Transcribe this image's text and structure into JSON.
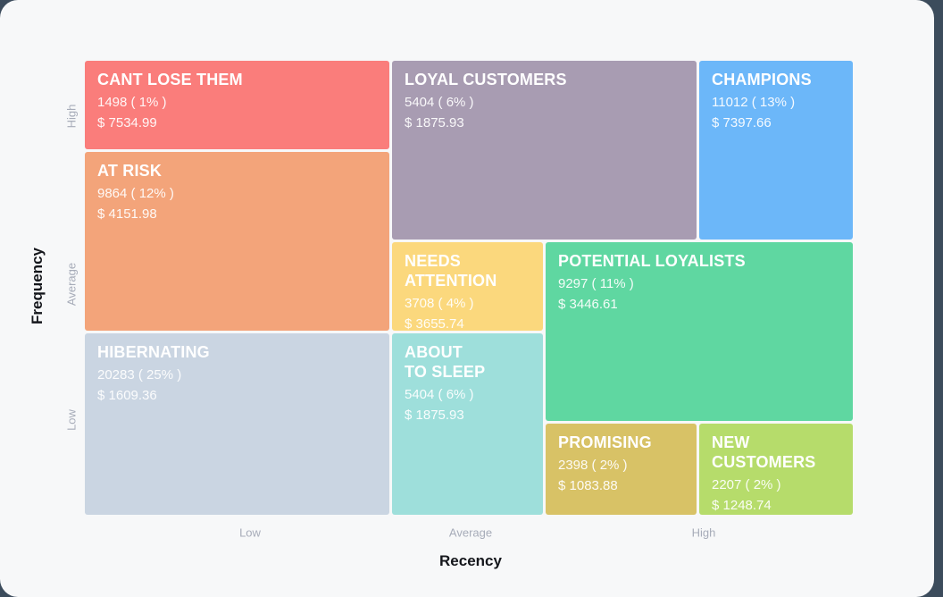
{
  "page": {
    "background_color": "#3C4C5C",
    "card_color": "#F7F8F9"
  },
  "chart_data": {
    "type": "treemap",
    "title": "",
    "xlabel": "Recency",
    "ylabel": "Frequency",
    "x_ticks": [
      "Low",
      "Average",
      "High"
    ],
    "y_ticks": [
      "High",
      "Average",
      "Low"
    ],
    "grid": false,
    "legend_position": "none",
    "segments": [
      {
        "name": "CANT LOSE THEM",
        "label": "CANT LOSE THEM",
        "count": 1498,
        "percent": 1,
        "monetary": 7534.99,
        "count_label": "1498 ( 1% )",
        "monetary_label": "$ 7534.99",
        "color": "#FA7D7B",
        "recency": "Low",
        "frequency": "High"
      },
      {
        "name": "AT RISK",
        "label": "AT RISK",
        "count": 9864,
        "percent": 12,
        "monetary": 4151.98,
        "count_label": "9864 ( 12% )",
        "monetary_label": "$ 4151.98",
        "color": "#F3A47A",
        "recency": "Low",
        "frequency": "Average"
      },
      {
        "name": "HIBERNATING",
        "label": "HIBERNATING",
        "count": 20283,
        "percent": 25,
        "monetary": 1609.36,
        "count_label": "20283 ( 25% )",
        "monetary_label": "$ 1609.36",
        "color": "#CAD5E2",
        "recency": "Low",
        "frequency": "Low"
      },
      {
        "name": "LOYAL CUSTOMERS",
        "label": "LOYAL CUSTOMERS",
        "count": 5404,
        "percent": 6,
        "monetary": 1875.93,
        "count_label": "5404 ( 6% )",
        "monetary_label": "$ 1875.93",
        "color": "#A89CB2",
        "recency": "Average",
        "frequency": "High"
      },
      {
        "name": "CHAMPIONS",
        "label": "CHAMPIONS",
        "count": 11012,
        "percent": 13,
        "monetary": 7397.66,
        "count_label": "11012 ( 13% )",
        "monetary_label": "$ 7397.66",
        "color": "#6CB7F9",
        "recency": "High",
        "frequency": "High"
      },
      {
        "name": "NEEDS ATTENTION",
        "label": "NEEDS\nATTENTION",
        "count": 3708,
        "percent": 4,
        "monetary": 3655.74,
        "count_label": "3708 ( 4% )",
        "monetary_label": "$ 3655.74",
        "color": "#FBD87D",
        "recency": "Average",
        "frequency": "Average"
      },
      {
        "name": "POTENTIAL LOYALISTS",
        "label": "POTENTIAL LOYALISTS",
        "count": 9297,
        "percent": 11,
        "monetary": 3446.61,
        "count_label": "9297 ( 11% )",
        "monetary_label": "$ 3446.61",
        "color": "#5FD7A1",
        "recency": "High",
        "frequency": "Average"
      },
      {
        "name": "ABOUT TO SLEEP",
        "label": "ABOUT\nTO SLEEP",
        "count": 5404,
        "percent": 6,
        "monetary": 1875.93,
        "count_label": "5404 ( 6% )",
        "monetary_label": "$ 1875.93",
        "color": "#9EDFDB",
        "recency": "Average",
        "frequency": "Low"
      },
      {
        "name": "PROMISING",
        "label": "PROMISING",
        "count": 2398,
        "percent": 2,
        "monetary": 1083.88,
        "count_label": "2398 ( 2% )",
        "monetary_label": "$ 1083.88",
        "color": "#D8C266",
        "recency": "High",
        "frequency": "Low"
      },
      {
        "name": "NEW CUSTOMERS",
        "label": "NEW\nCUSTOMERS",
        "count": 2207,
        "percent": 2,
        "monetary": 1248.74,
        "count_label": "2207 ( 2% )",
        "monetary_label": "$ 1248.74",
        "color": "#B6DC6B",
        "recency": "High",
        "frequency": "Low"
      }
    ]
  }
}
